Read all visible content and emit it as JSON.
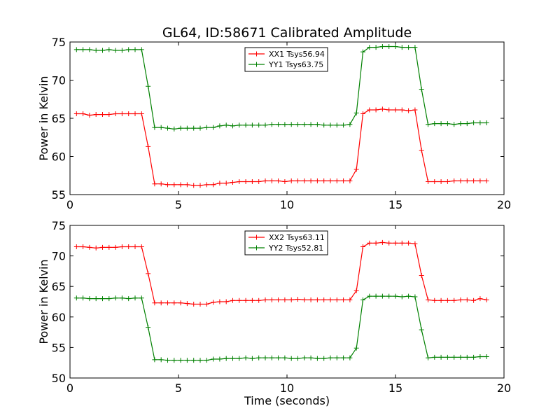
{
  "chart_data": [
    {
      "type": "line",
      "title": "GL64, ID:58671 Calibrated Amplitude",
      "xlabel": "",
      "ylabel": "Power in Kelvin",
      "xlim": [
        0,
        20
      ],
      "ylim": [
        55,
        75
      ],
      "xticks": [
        "0",
        "5",
        "10",
        "15",
        "20"
      ],
      "yticks": [
        "55",
        "60",
        "65",
        "70",
        "75"
      ],
      "grid": false,
      "legend_position": "top-center",
      "x": [
        0.3,
        0.6,
        0.9,
        1.2,
        1.5,
        1.8,
        2.1,
        2.4,
        2.7,
        3.0,
        3.3,
        3.6,
        3.9,
        4.2,
        4.5,
        4.8,
        5.1,
        5.4,
        5.7,
        6.0,
        6.3,
        6.6,
        6.9,
        7.2,
        7.5,
        7.8,
        8.1,
        8.4,
        8.7,
        9.0,
        9.3,
        9.6,
        9.9,
        10.2,
        10.5,
        10.8,
        11.1,
        11.4,
        11.7,
        12.0,
        12.3,
        12.6,
        12.9,
        13.2,
        13.5,
        13.8,
        14.1,
        14.4,
        14.7,
        15.0,
        15.3,
        15.6,
        15.9,
        16.2,
        16.5,
        16.8,
        17.1,
        17.4,
        17.7,
        18.0,
        18.3,
        18.6,
        18.9,
        19.2
      ],
      "series": [
        {
          "name": "XX1 Tsys56.94",
          "color": "#ff0000",
          "values": [
            65.6,
            65.6,
            65.4,
            65.5,
            65.5,
            65.5,
            65.6,
            65.6,
            65.6,
            65.6,
            65.6,
            61.3,
            56.4,
            56.4,
            56.3,
            56.3,
            56.3,
            56.3,
            56.2,
            56.2,
            56.3,
            56.3,
            56.5,
            56.5,
            56.6,
            56.7,
            56.7,
            56.7,
            56.7,
            56.8,
            56.8,
            56.8,
            56.7,
            56.8,
            56.8,
            56.8,
            56.8,
            56.8,
            56.8,
            56.8,
            56.8,
            56.8,
            56.8,
            58.3,
            65.6,
            66.1,
            66.1,
            66.2,
            66.1,
            66.1,
            66.1,
            66.0,
            66.1,
            60.8,
            56.7,
            56.7,
            56.7,
            56.7,
            56.8,
            56.8,
            56.8,
            56.8,
            56.8,
            56.8
          ]
        },
        {
          "name": "YY1 Tsys63.75",
          "color": "#008000",
          "values": [
            74.0,
            74.0,
            74.0,
            73.9,
            73.9,
            74.0,
            73.9,
            73.9,
            74.0,
            74.0,
            74.0,
            69.2,
            63.8,
            63.8,
            63.7,
            63.6,
            63.7,
            63.7,
            63.7,
            63.7,
            63.8,
            63.8,
            64.0,
            64.1,
            64.0,
            64.1,
            64.1,
            64.1,
            64.1,
            64.1,
            64.2,
            64.2,
            64.2,
            64.2,
            64.2,
            64.2,
            64.2,
            64.2,
            64.1,
            64.1,
            64.1,
            64.1,
            64.2,
            65.7,
            73.7,
            74.3,
            74.3,
            74.4,
            74.4,
            74.4,
            74.3,
            74.3,
            74.3,
            68.8,
            64.2,
            64.3,
            64.3,
            64.3,
            64.2,
            64.3,
            64.3,
            64.4,
            64.4,
            64.4
          ]
        }
      ]
    },
    {
      "type": "line",
      "title": "",
      "xlabel": "Time (seconds)",
      "ylabel": "Power in Kelvin",
      "xlim": [
        0,
        20
      ],
      "ylim": [
        50,
        75
      ],
      "xticks": [
        "0",
        "5",
        "10",
        "15",
        "20"
      ],
      "yticks": [
        "50",
        "55",
        "60",
        "65",
        "70",
        "75"
      ],
      "grid": false,
      "legend_position": "top-center",
      "x": [
        0.3,
        0.6,
        0.9,
        1.2,
        1.5,
        1.8,
        2.1,
        2.4,
        2.7,
        3.0,
        3.3,
        3.6,
        3.9,
        4.2,
        4.5,
        4.8,
        5.1,
        5.4,
        5.7,
        6.0,
        6.3,
        6.6,
        6.9,
        7.2,
        7.5,
        7.8,
        8.1,
        8.4,
        8.7,
        9.0,
        9.3,
        9.6,
        9.9,
        10.2,
        10.5,
        10.8,
        11.1,
        11.4,
        11.7,
        12.0,
        12.3,
        12.6,
        12.9,
        13.2,
        13.5,
        13.8,
        14.1,
        14.4,
        14.7,
        15.0,
        15.3,
        15.6,
        15.9,
        16.2,
        16.5,
        16.8,
        17.1,
        17.4,
        17.7,
        18.0,
        18.3,
        18.6,
        18.9,
        19.2
      ],
      "series": [
        {
          "name": "XX2 Tsys63.11",
          "color": "#ff0000",
          "values": [
            71.5,
            71.5,
            71.4,
            71.3,
            71.4,
            71.4,
            71.4,
            71.5,
            71.5,
            71.5,
            71.5,
            67.1,
            62.3,
            62.3,
            62.3,
            62.3,
            62.3,
            62.2,
            62.1,
            62.1,
            62.1,
            62.4,
            62.5,
            62.5,
            62.7,
            62.7,
            62.7,
            62.7,
            62.7,
            62.8,
            62.8,
            62.8,
            62.8,
            62.8,
            62.9,
            62.8,
            62.8,
            62.8,
            62.8,
            62.8,
            62.8,
            62.8,
            62.8,
            64.3,
            71.5,
            72.1,
            72.1,
            72.2,
            72.1,
            72.1,
            72.1,
            72.1,
            72.0,
            66.8,
            62.8,
            62.7,
            62.7,
            62.7,
            62.7,
            62.8,
            62.8,
            62.7,
            63.0,
            62.8
          ]
        },
        {
          "name": "YY2 Tsys52.81",
          "color": "#008000",
          "values": [
            63.1,
            63.1,
            63.0,
            63.0,
            63.0,
            63.0,
            63.1,
            63.1,
            63.0,
            63.1,
            63.1,
            58.3,
            53.0,
            53.0,
            52.9,
            52.9,
            52.9,
            52.9,
            52.9,
            52.9,
            52.9,
            53.1,
            53.1,
            53.2,
            53.2,
            53.2,
            53.3,
            53.2,
            53.3,
            53.3,
            53.3,
            53.3,
            53.3,
            53.2,
            53.2,
            53.3,
            53.3,
            53.2,
            53.2,
            53.3,
            53.3,
            53.3,
            53.3,
            54.9,
            62.8,
            63.4,
            63.4,
            63.4,
            63.4,
            63.4,
            63.3,
            63.4,
            63.3,
            57.9,
            53.3,
            53.4,
            53.4,
            53.4,
            53.4,
            53.4,
            53.4,
            53.4,
            53.5,
            53.5
          ]
        }
      ]
    }
  ]
}
